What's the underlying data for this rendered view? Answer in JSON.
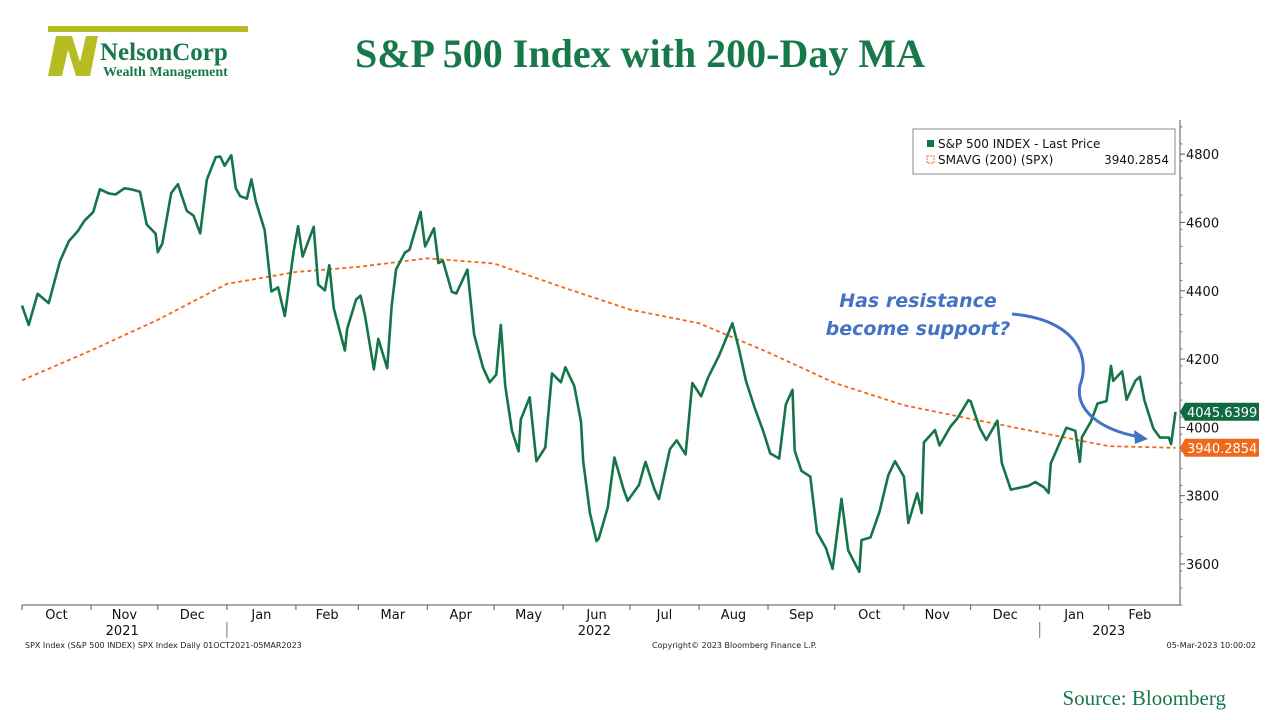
{
  "logo": {
    "name": "NelsonCorp",
    "tagline": "Wealth Management"
  },
  "title": "S&P 500 Index with 200-Day MA",
  "source": "Source: Bloomberg",
  "footer": {
    "left": "SPX Index (S&P 500 INDEX) SPX Index  Daily 01OCT2021-05MAR2023",
    "center": "Copyright© 2023 Bloomberg Finance L.P.",
    "right": "05-Mar-2023 10:00:02"
  },
  "annotation": {
    "line1": "Has resistance",
    "line2": "become support?"
  },
  "colors": {
    "price": "#15744a",
    "ma": "#ee6a1a",
    "brand": "#17794a",
    "annotation": "#4472c4",
    "logo": "#b5bd22"
  },
  "chart_data": {
    "type": "line",
    "x_start": "2021-10-01",
    "x_end": "2023-03-05",
    "ylim": [
      3480,
      4900
    ],
    "yticks": [
      3600,
      3800,
      4000,
      4200,
      4400,
      4600,
      4800
    ],
    "month_labels": [
      {
        "date": "2021-10-01",
        "label": "Oct"
      },
      {
        "date": "2021-11-01",
        "label": "Nov"
      },
      {
        "date": "2021-12-01",
        "label": "Dec"
      },
      {
        "date": "2022-01-01",
        "label": "Jan"
      },
      {
        "date": "2022-02-01",
        "label": "Feb"
      },
      {
        "date": "2022-03-01",
        "label": "Mar"
      },
      {
        "date": "2022-04-01",
        "label": "Apr"
      },
      {
        "date": "2022-05-01",
        "label": "May"
      },
      {
        "date": "2022-06-01",
        "label": "Jun"
      },
      {
        "date": "2022-07-01",
        "label": "Jul"
      },
      {
        "date": "2022-08-01",
        "label": "Aug"
      },
      {
        "date": "2022-09-01",
        "label": "Sep"
      },
      {
        "date": "2022-10-01",
        "label": "Oct"
      },
      {
        "date": "2022-11-01",
        "label": "Nov"
      },
      {
        "date": "2022-12-01",
        "label": "Dec"
      },
      {
        "date": "2023-01-01",
        "label": "Jan"
      },
      {
        "date": "2023-02-01",
        "label": "Feb"
      }
    ],
    "year_labels": [
      {
        "date": "2021-11-15",
        "label": "2021"
      },
      {
        "date": "2022-06-15",
        "label": "2022"
      },
      {
        "date": "2023-02-01",
        "label": "2023"
      }
    ],
    "legend": [
      {
        "name": "S&P 500 INDEX - Last Price",
        "value": ""
      },
      {
        "name": "SMAVG (200) (SPX)",
        "value": "3940.2854"
      }
    ],
    "last_values": {
      "price": "4045.6399",
      "ma": "3940.2854"
    },
    "series": [
      {
        "name": "S&P 500 INDEX - Last Price",
        "style": "solid",
        "points": [
          [
            "2021-10-01",
            4357
          ],
          [
            "2021-10-04",
            4300
          ],
          [
            "2021-10-08",
            4391
          ],
          [
            "2021-10-13",
            4364
          ],
          [
            "2021-10-18",
            4486
          ],
          [
            "2021-10-22",
            4545
          ],
          [
            "2021-10-26",
            4574
          ],
          [
            "2021-10-29",
            4605
          ],
          [
            "2021-11-02",
            4631
          ],
          [
            "2021-11-05",
            4697
          ],
          [
            "2021-11-09",
            4685
          ],
          [
            "2021-11-12",
            4682
          ],
          [
            "2021-11-16",
            4700
          ],
          [
            "2021-11-19",
            4697
          ],
          [
            "2021-11-23",
            4690
          ],
          [
            "2021-11-26",
            4594
          ],
          [
            "2021-11-30",
            4567
          ],
          [
            "2021-12-01",
            4513
          ],
          [
            "2021-12-03",
            4538
          ],
          [
            "2021-12-07",
            4686
          ],
          [
            "2021-12-10",
            4712
          ],
          [
            "2021-12-14",
            4634
          ],
          [
            "2021-12-17",
            4620
          ],
          [
            "2021-12-20",
            4568
          ],
          [
            "2021-12-23",
            4725
          ],
          [
            "2021-12-27",
            4791
          ],
          [
            "2021-12-29",
            4793
          ],
          [
            "2021-12-31",
            4766
          ],
          [
            "2022-01-03",
            4797
          ],
          [
            "2022-01-05",
            4700
          ],
          [
            "2022-01-07",
            4677
          ],
          [
            "2022-01-10",
            4670
          ],
          [
            "2022-01-12",
            4726
          ],
          [
            "2022-01-14",
            4662
          ],
          [
            "2022-01-18",
            4577
          ],
          [
            "2022-01-21",
            4398
          ],
          [
            "2022-01-24",
            4410
          ],
          [
            "2022-01-27",
            4326
          ],
          [
            "2022-01-31",
            4516
          ],
          [
            "2022-02-02",
            4589
          ],
          [
            "2022-02-04",
            4500
          ],
          [
            "2022-02-09",
            4587
          ],
          [
            "2022-02-11",
            4418
          ],
          [
            "2022-02-14",
            4401
          ],
          [
            "2022-02-16",
            4475
          ],
          [
            "2022-02-18",
            4348
          ],
          [
            "2022-02-23",
            4225
          ],
          [
            "2022-02-24",
            4288
          ],
          [
            "2022-02-28",
            4374
          ],
          [
            "2022-03-02",
            4386
          ],
          [
            "2022-03-04",
            4329
          ],
          [
            "2022-03-08",
            4170
          ],
          [
            "2022-03-10",
            4259
          ],
          [
            "2022-03-14",
            4173
          ],
          [
            "2022-03-16",
            4357
          ],
          [
            "2022-03-18",
            4463
          ],
          [
            "2022-03-22",
            4512
          ],
          [
            "2022-03-24",
            4520
          ],
          [
            "2022-03-29",
            4631
          ],
          [
            "2022-03-31",
            4530
          ],
          [
            "2022-04-04",
            4583
          ],
          [
            "2022-04-06",
            4481
          ],
          [
            "2022-04-08",
            4488
          ],
          [
            "2022-04-12",
            4397
          ],
          [
            "2022-04-14",
            4392
          ],
          [
            "2022-04-19",
            4462
          ],
          [
            "2022-04-22",
            4272
          ],
          [
            "2022-04-26",
            4175
          ],
          [
            "2022-04-29",
            4132
          ],
          [
            "2022-05-02",
            4155
          ],
          [
            "2022-05-04",
            4300
          ],
          [
            "2022-05-06",
            4123
          ],
          [
            "2022-05-09",
            3991
          ],
          [
            "2022-05-12",
            3930
          ],
          [
            "2022-05-13",
            4023
          ],
          [
            "2022-05-17",
            4088
          ],
          [
            "2022-05-20",
            3901
          ],
          [
            "2022-05-24",
            3941
          ],
          [
            "2022-05-27",
            4158
          ],
          [
            "2022-05-31",
            4132
          ],
          [
            "2022-06-02",
            4176
          ],
          [
            "2022-06-06",
            4121
          ],
          [
            "2022-06-09",
            4017
          ],
          [
            "2022-06-10",
            3901
          ],
          [
            "2022-06-13",
            3750
          ],
          [
            "2022-06-16",
            3667
          ],
          [
            "2022-06-17",
            3675
          ],
          [
            "2022-06-21",
            3765
          ],
          [
            "2022-06-24",
            3912
          ],
          [
            "2022-06-28",
            3821
          ],
          [
            "2022-06-30",
            3785
          ],
          [
            "2022-07-05",
            3831
          ],
          [
            "2022-07-08",
            3899
          ],
          [
            "2022-07-12",
            3819
          ],
          [
            "2022-07-14",
            3790
          ],
          [
            "2022-07-19",
            3937
          ],
          [
            "2022-07-22",
            3962
          ],
          [
            "2022-07-26",
            3921
          ],
          [
            "2022-07-29",
            4130
          ],
          [
            "2022-08-02",
            4091
          ],
          [
            "2022-08-05",
            4145
          ],
          [
            "2022-08-10",
            4210
          ],
          [
            "2022-08-16",
            4305
          ],
          [
            "2022-08-19",
            4228
          ],
          [
            "2022-08-22",
            4138
          ],
          [
            "2022-08-26",
            4057
          ],
          [
            "2022-08-30",
            3986
          ],
          [
            "2022-09-02",
            3924
          ],
          [
            "2022-09-06",
            3909
          ],
          [
            "2022-09-09",
            4067
          ],
          [
            "2022-09-12",
            4110
          ],
          [
            "2022-09-13",
            3932
          ],
          [
            "2022-09-16",
            3873
          ],
          [
            "2022-09-20",
            3856
          ],
          [
            "2022-09-23",
            3693
          ],
          [
            "2022-09-27",
            3647
          ],
          [
            "2022-09-30",
            3586
          ],
          [
            "2022-10-04",
            3791
          ],
          [
            "2022-10-07",
            3640
          ],
          [
            "2022-10-12",
            3577
          ],
          [
            "2022-10-13",
            3670
          ],
          [
            "2022-10-17",
            3678
          ],
          [
            "2022-10-21",
            3752
          ],
          [
            "2022-10-25",
            3860
          ],
          [
            "2022-10-28",
            3901
          ],
          [
            "2022-11-01",
            3856
          ],
          [
            "2022-11-03",
            3720
          ],
          [
            "2022-11-07",
            3807
          ],
          [
            "2022-11-09",
            3749
          ],
          [
            "2022-11-10",
            3956
          ],
          [
            "2022-11-15",
            3992
          ],
          [
            "2022-11-17",
            3947
          ],
          [
            "2022-11-22",
            4003
          ],
          [
            "2022-11-25",
            4026
          ],
          [
            "2022-11-30",
            4080
          ],
          [
            "2022-12-01",
            4076
          ],
          [
            "2022-12-05",
            3999
          ],
          [
            "2022-12-08",
            3963
          ],
          [
            "2022-12-13",
            4020
          ],
          [
            "2022-12-15",
            3896
          ],
          [
            "2022-12-19",
            3818
          ],
          [
            "2022-12-22",
            3822
          ],
          [
            "2022-12-27",
            3829
          ],
          [
            "2022-12-30",
            3840
          ],
          [
            "2023-01-03",
            3824
          ],
          [
            "2023-01-05",
            3808
          ],
          [
            "2023-01-06",
            3895
          ],
          [
            "2023-01-11",
            3970
          ],
          [
            "2023-01-13",
            3999
          ],
          [
            "2023-01-17",
            3990
          ],
          [
            "2023-01-19",
            3899
          ],
          [
            "2023-01-20",
            3972
          ],
          [
            "2023-01-24",
            4017
          ],
          [
            "2023-01-27",
            4070
          ],
          [
            "2023-01-31",
            4077
          ],
          [
            "2023-02-02",
            4180
          ],
          [
            "2023-02-03",
            4136
          ],
          [
            "2023-02-07",
            4164
          ],
          [
            "2023-02-09",
            4081
          ],
          [
            "2023-02-13",
            4137
          ],
          [
            "2023-02-15",
            4148
          ],
          [
            "2023-02-17",
            4079
          ],
          [
            "2023-02-21",
            3997
          ],
          [
            "2023-02-24",
            3970
          ],
          [
            "2023-02-28",
            3970
          ],
          [
            "2023-03-01",
            3951
          ],
          [
            "2023-03-03",
            4045.6399
          ]
        ]
      },
      {
        "name": "SMAVG (200) (SPX)",
        "style": "dashed",
        "points": [
          [
            "2021-10-01",
            4138
          ],
          [
            "2021-11-01",
            4225
          ],
          [
            "2021-12-01",
            4315
          ],
          [
            "2022-01-01",
            4420
          ],
          [
            "2022-02-01",
            4455
          ],
          [
            "2022-03-01",
            4470
          ],
          [
            "2022-04-01",
            4495
          ],
          [
            "2022-05-01",
            4480
          ],
          [
            "2022-06-01",
            4410
          ],
          [
            "2022-07-01",
            4345
          ],
          [
            "2022-08-01",
            4305
          ],
          [
            "2022-09-01",
            4220
          ],
          [
            "2022-10-01",
            4130
          ],
          [
            "2022-11-01",
            4065
          ],
          [
            "2022-12-01",
            4025
          ],
          [
            "2023-01-01",
            3985
          ],
          [
            "2023-02-01",
            3945
          ],
          [
            "2023-03-03",
            3940.2854
          ]
        ]
      }
    ]
  }
}
